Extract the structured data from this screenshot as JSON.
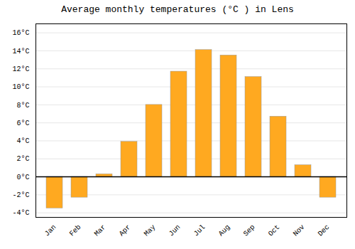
{
  "chart_data": {
    "type": "bar",
    "title": "Average monthly temperatures (°C ) in Lens",
    "categories": [
      "Jan",
      "Feb",
      "Mar",
      "Apr",
      "May",
      "Jun",
      "Jul",
      "Aug",
      "Sep",
      "Oct",
      "Nov",
      "Dec"
    ],
    "values": [
      -3.5,
      -2.3,
      0.3,
      3.9,
      8.0,
      11.7,
      14.1,
      13.5,
      11.1,
      6.7,
      1.3,
      -2.3
    ],
    "color": "#FFA920",
    "ylim": [
      -4.5,
      17.0
    ],
    "yticks": [
      {
        "value": -4,
        "label": "-4°C"
      },
      {
        "value": -2,
        "label": "-2°C"
      },
      {
        "value": 0,
        "label": "0°C"
      },
      {
        "value": 2,
        "label": "2°C"
      },
      {
        "value": 4,
        "label": "4°C"
      },
      {
        "value": 6,
        "label": "6°C"
      },
      {
        "value": 8,
        "label": "8°C"
      },
      {
        "value": 10,
        "label": "10°C"
      },
      {
        "value": 12,
        "label": "12°C"
      },
      {
        "value": 14,
        "label": "14°C"
      },
      {
        "value": 16,
        "label": "16°C"
      }
    ],
    "grid": true
  }
}
